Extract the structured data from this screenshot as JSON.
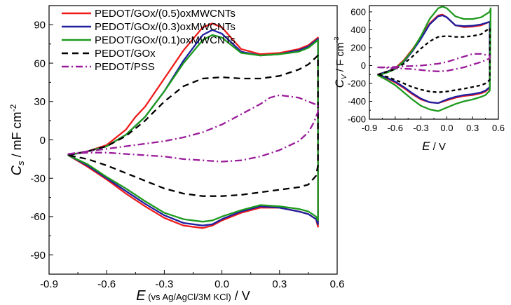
{
  "chart_data": [
    {
      "type": "line",
      "xlabel": {
        "symbol": "E",
        "note": "(vs Ag/AgCl/3M KCl)",
        "unit": "/ V"
      },
      "ylabel": {
        "symbol": "C",
        "sub": "s",
        "unit": "/ mF cm",
        "sup": "-2"
      },
      "xlim": [
        -0.9,
        0.6
      ],
      "ylim": [
        -105,
        105
      ],
      "xticks": [
        "-0.9",
        "-0.6",
        "-0.3",
        "0.0",
        "0.3",
        "0.6"
      ],
      "yticks": [
        "-90",
        "-60",
        "-30",
        "0",
        "30",
        "60",
        "90"
      ],
      "legend_position": "top",
      "series": [
        {
          "name": "PEDOT/GOx/(0.5)oxMWCNTs",
          "color": "#ee1c1c",
          "dash": "solid",
          "x": [
            -0.8,
            -0.7,
            -0.6,
            -0.5,
            -0.45,
            -0.4,
            -0.3,
            -0.2,
            -0.1,
            -0.05,
            0.0,
            0.1,
            0.2,
            0.3,
            0.4,
            0.45,
            0.5,
            0.5,
            0.49,
            0.45,
            0.4,
            0.3,
            0.2,
            0.1,
            0.0,
            -0.05,
            -0.1,
            -0.2,
            -0.3,
            -0.4,
            -0.5,
            -0.6,
            -0.7,
            -0.8
          ],
          "y": [
            -12,
            -9,
            -4,
            8,
            18,
            26,
            48,
            70,
            88,
            91,
            88,
            71,
            67,
            68,
            71,
            74,
            80,
            -68,
            -62,
            -58,
            -56,
            -53,
            -53,
            -57,
            -63,
            -67,
            -69,
            -67,
            -61,
            -52,
            -42,
            -31,
            -21,
            -12
          ]
        },
        {
          "name": "PEDOT/GOx/(0.3)oxMWCNTs",
          "color": "#1f1fa0",
          "dash": "solid",
          "x": [
            -0.8,
            -0.7,
            -0.6,
            -0.5,
            -0.45,
            -0.4,
            -0.3,
            -0.2,
            -0.1,
            -0.05,
            0.0,
            0.1,
            0.2,
            0.3,
            0.4,
            0.45,
            0.5,
            0.5,
            0.49,
            0.45,
            0.4,
            0.3,
            0.2,
            0.1,
            0.0,
            -0.05,
            -0.1,
            -0.2,
            -0.3,
            -0.4,
            -0.5,
            -0.6,
            -0.7,
            -0.8
          ],
          "y": [
            -12,
            -9,
            -5,
            4,
            11,
            18,
            38,
            62,
            82,
            86,
            83,
            69,
            66,
            67,
            70,
            73,
            79,
            -66,
            -62,
            -58,
            -56,
            -53,
            -52,
            -56,
            -62,
            -66,
            -67,
            -65,
            -59,
            -50,
            -40,
            -30,
            -20,
            -12
          ]
        },
        {
          "name": "PEDOT/GOx/(0.1)oxMWCNTs",
          "color": "#1e9a1e",
          "dash": "solid",
          "x": [
            -0.8,
            -0.7,
            -0.6,
            -0.5,
            -0.45,
            -0.4,
            -0.3,
            -0.2,
            -0.1,
            -0.05,
            0.0,
            0.1,
            0.2,
            0.3,
            0.4,
            0.45,
            0.5,
            0.5,
            0.49,
            0.45,
            0.4,
            0.3,
            0.2,
            0.1,
            0.0,
            -0.05,
            -0.1,
            -0.2,
            -0.3,
            -0.4,
            -0.5,
            -0.6,
            -0.7,
            -0.8
          ],
          "y": [
            -12,
            -9,
            -5,
            4,
            11,
            18,
            38,
            60,
            78,
            82,
            80,
            68,
            66,
            67,
            69,
            72,
            78,
            -63,
            -60,
            -56,
            -54,
            -52,
            -51,
            -55,
            -60,
            -63,
            -64,
            -62,
            -57,
            -48,
            -38,
            -29,
            -19,
            -12
          ]
        },
        {
          "name": "PEDOT/GOx",
          "color": "#000000",
          "dash": "long",
          "x": [
            -0.8,
            -0.7,
            -0.6,
            -0.5,
            -0.4,
            -0.3,
            -0.2,
            -0.1,
            0.0,
            0.1,
            0.2,
            0.3,
            0.4,
            0.45,
            0.5,
            0.5,
            0.49,
            0.45,
            0.4,
            0.3,
            0.2,
            0.1,
            0.0,
            -0.1,
            -0.2,
            -0.3,
            -0.4,
            -0.5,
            -0.6,
            -0.7,
            -0.8
          ],
          "y": [
            -12,
            -9,
            -5,
            3,
            15,
            30,
            42,
            48,
            49,
            48,
            48,
            50,
            55,
            59,
            66,
            -20,
            -28,
            -35,
            -37,
            -39,
            -41,
            -43,
            -44,
            -44,
            -42,
            -38,
            -32,
            -26,
            -20,
            -15,
            -12
          ]
        },
        {
          "name": "PEDOT/PSS",
          "color": "#9a1c9a",
          "dash": "dashdot",
          "x": [
            -0.8,
            -0.7,
            -0.6,
            -0.5,
            -0.4,
            -0.3,
            -0.2,
            -0.1,
            0.0,
            0.1,
            0.2,
            0.25,
            0.3,
            0.4,
            0.45,
            0.5,
            0.5,
            0.48,
            0.45,
            0.4,
            0.3,
            0.2,
            0.1,
            0.0,
            -0.1,
            -0.2,
            -0.3,
            -0.4,
            -0.5,
            -0.6,
            -0.7,
            -0.8
          ],
          "y": [
            -11,
            -9,
            -7,
            -5,
            -3,
            -1,
            2,
            6,
            12,
            20,
            28,
            33,
            35,
            33,
            30,
            27,
            22,
            14,
            6,
            -1,
            -8,
            -13,
            -16,
            -17,
            -16,
            -15,
            -13,
            -12,
            -11,
            -10,
            -10,
            -11
          ]
        }
      ]
    },
    {
      "type": "line",
      "xlabel": {
        "symbol": "E",
        "unit": "/ V"
      },
      "ylabel": {
        "symbol": "C",
        "sub": "V",
        "unit": "/ F cm",
        "sup": "-3"
      },
      "xlim": [
        -0.9,
        0.6
      ],
      "ylim": [
        -600,
        670
      ],
      "xticks": [
        "-0.9",
        "-0.6",
        "-0.3",
        "0.0",
        "0.3",
        "0.6"
      ],
      "yticks": [
        "-600",
        "-400",
        "-200",
        "0",
        "200",
        "400",
        "600"
      ],
      "series": [
        {
          "color": "#ee1c1c",
          "dash": "solid",
          "x": [
            -0.8,
            -0.7,
            -0.6,
            -0.5,
            -0.4,
            -0.3,
            -0.2,
            -0.1,
            -0.05,
            0.0,
            0.1,
            0.2,
            0.3,
            0.4,
            0.5,
            0.5,
            0.45,
            0.4,
            0.3,
            0.2,
            0.1,
            0.0,
            -0.1,
            -0.2,
            -0.3,
            -0.4,
            -0.5,
            -0.6,
            -0.7,
            -0.8
          ],
          "y": [
            -100,
            -70,
            -30,
            60,
            180,
            320,
            470,
            560,
            570,
            540,
            450,
            430,
            435,
            450,
            490,
            -250,
            -290,
            -310,
            -330,
            -340,
            -360,
            -390,
            -420,
            -410,
            -380,
            -320,
            -250,
            -190,
            -140,
            -100
          ]
        },
        {
          "color": "#1f1fa0",
          "dash": "solid",
          "x": [
            -0.8,
            -0.7,
            -0.6,
            -0.5,
            -0.4,
            -0.3,
            -0.2,
            -0.1,
            -0.05,
            0.0,
            0.1,
            0.2,
            0.3,
            0.4,
            0.5,
            0.5,
            0.45,
            0.4,
            0.3,
            0.2,
            0.1,
            0.0,
            -0.1,
            -0.2,
            -0.3,
            -0.4,
            -0.5,
            -0.6,
            -0.7,
            -0.8
          ],
          "y": [
            -100,
            -70,
            -35,
            40,
            160,
            300,
            460,
            550,
            560,
            540,
            450,
            440,
            445,
            460,
            490,
            -240,
            -280,
            -300,
            -320,
            -330,
            -350,
            -380,
            -420,
            -410,
            -370,
            -310,
            -240,
            -180,
            -135,
            -100
          ]
        },
        {
          "color": "#1e9a1e",
          "dash": "solid",
          "x": [
            -0.8,
            -0.7,
            -0.6,
            -0.5,
            -0.4,
            -0.3,
            -0.2,
            -0.1,
            -0.05,
            0.0,
            0.1,
            0.2,
            0.3,
            0.4,
            0.5,
            0.51,
            0.5,
            0.45,
            0.4,
            0.3,
            0.2,
            0.1,
            0.0,
            -0.1,
            -0.2,
            -0.3,
            -0.4,
            -0.5,
            -0.6,
            -0.7,
            -0.8
          ],
          "y": [
            -110,
            -80,
            -40,
            50,
            170,
            330,
            520,
            640,
            660,
            640,
            550,
            520,
            520,
            540,
            600,
            640,
            -280,
            -330,
            -350,
            -380,
            -400,
            -430,
            -470,
            -510,
            -490,
            -450,
            -380,
            -300,
            -220,
            -160,
            -110
          ]
        },
        {
          "color": "#000000",
          "dash": "short",
          "x": [
            -0.8,
            -0.7,
            -0.6,
            -0.5,
            -0.4,
            -0.3,
            -0.2,
            -0.1,
            0.0,
            0.1,
            0.2,
            0.3,
            0.4,
            0.5,
            0.5,
            0.45,
            0.4,
            0.3,
            0.2,
            0.1,
            0.0,
            -0.1,
            -0.2,
            -0.3,
            -0.4,
            -0.5,
            -0.6,
            -0.7,
            -0.8
          ],
          "y": [
            -100,
            -70,
            -40,
            20,
            100,
            190,
            270,
            320,
            330,
            320,
            320,
            330,
            350,
            420,
            -160,
            -200,
            -220,
            -240,
            -260,
            -275,
            -290,
            -300,
            -290,
            -270,
            -240,
            -200,
            -160,
            -125,
            -100
          ]
        },
        {
          "color": "#9a1c9a",
          "dash": "dashdot",
          "x": [
            -0.8,
            -0.7,
            -0.6,
            -0.5,
            -0.4,
            -0.3,
            -0.2,
            -0.1,
            0.0,
            0.1,
            0.2,
            0.3,
            0.4,
            0.5,
            0.5,
            0.45,
            0.4,
            0.3,
            0.2,
            0.1,
            0.0,
            -0.1,
            -0.2,
            -0.3,
            -0.4,
            -0.5,
            -0.6,
            -0.7,
            -0.8
          ],
          "y": [
            -20,
            -20,
            -15,
            -10,
            -5,
            0,
            10,
            20,
            40,
            70,
            100,
            130,
            130,
            110,
            80,
            60,
            40,
            10,
            -20,
            -40,
            -60,
            -65,
            -60,
            -50,
            -40,
            -35,
            -30,
            -25,
            -20
          ]
        }
      ]
    }
  ]
}
